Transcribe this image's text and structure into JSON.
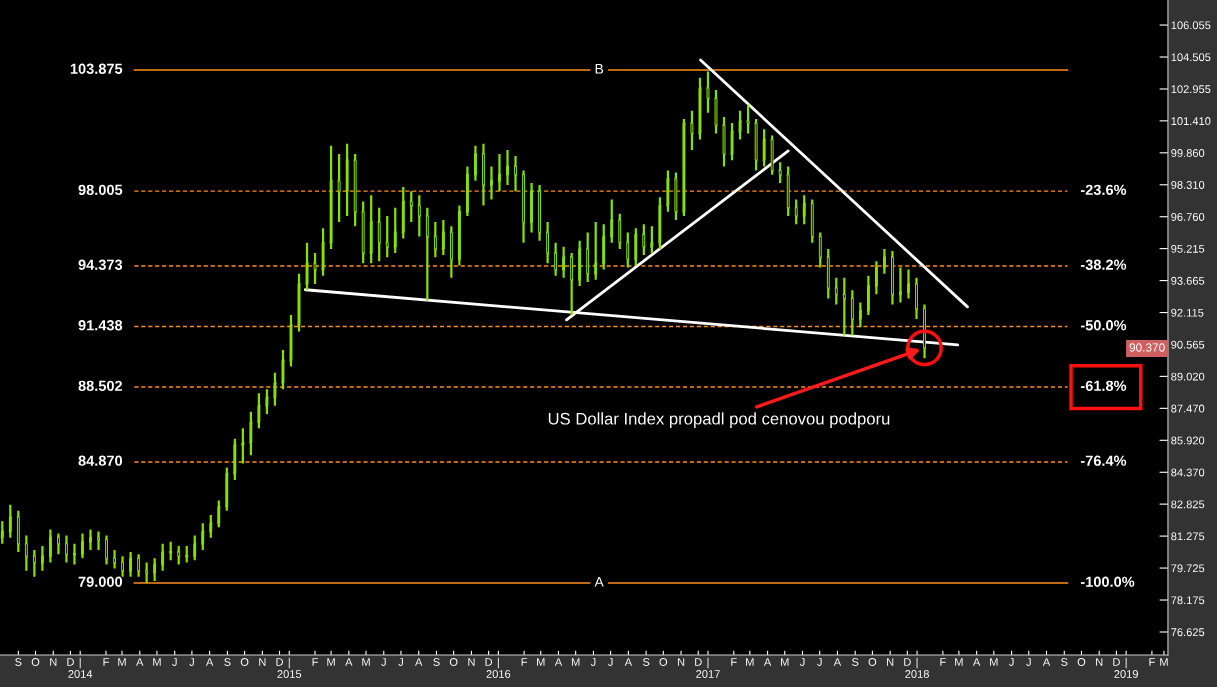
{
  "chart_data": {
    "type": "candlestick",
    "color": "#88e000",
    "x": [
      "2013-08-18",
      "2013-09-01",
      "2013-09-15",
      "2013-09-29",
      "2013-10-13",
      "2013-10-27",
      "2013-11-10",
      "2013-11-24",
      "2013-12-08",
      "2013-12-22",
      "2014-01-05",
      "2014-01-19",
      "2014-02-02",
      "2014-02-16",
      "2014-03-02",
      "2014-03-16",
      "2014-03-30",
      "2014-04-13",
      "2014-04-27",
      "2014-05-11",
      "2014-05-25",
      "2014-06-08",
      "2014-06-22",
      "2014-07-06",
      "2014-07-20",
      "2014-08-03",
      "2014-08-17",
      "2014-08-31",
      "2014-09-14",
      "2014-09-28",
      "2014-10-12",
      "2014-10-26",
      "2014-11-09",
      "2014-11-23",
      "2014-12-07",
      "2014-12-21",
      "2015-01-04",
      "2015-01-18",
      "2015-02-01",
      "2015-02-15",
      "2015-03-01",
      "2015-03-15",
      "2015-03-29",
      "2015-04-12",
      "2015-04-26",
      "2015-05-10",
      "2015-05-24",
      "2015-06-07",
      "2015-06-21",
      "2015-07-05",
      "2015-07-19",
      "2015-08-02",
      "2015-08-16",
      "2015-08-30",
      "2015-09-13",
      "2015-09-27",
      "2015-10-11",
      "2015-10-25",
      "2015-11-08",
      "2015-11-22",
      "2015-12-06",
      "2015-12-20",
      "2016-01-03",
      "2016-01-17",
      "2016-01-31",
      "2016-02-14",
      "2016-02-28",
      "2016-03-13",
      "2016-03-27",
      "2016-04-10",
      "2016-04-24",
      "2016-05-08",
      "2016-05-22",
      "2016-06-05",
      "2016-06-19",
      "2016-07-03",
      "2016-07-17",
      "2016-07-31",
      "2016-08-14",
      "2016-08-28",
      "2016-09-11",
      "2016-09-25",
      "2016-10-09",
      "2016-10-23",
      "2016-11-06",
      "2016-11-20",
      "2016-12-04",
      "2016-12-18",
      "2017-01-01",
      "2017-01-15",
      "2017-01-29",
      "2017-02-12",
      "2017-02-26",
      "2017-03-12",
      "2017-03-26",
      "2017-04-09",
      "2017-04-23",
      "2017-05-07",
      "2017-05-21",
      "2017-06-04",
      "2017-06-18",
      "2017-07-02",
      "2017-07-16",
      "2017-07-30",
      "2017-08-13",
      "2017-08-27",
      "2017-09-10",
      "2017-09-24",
      "2017-10-08",
      "2017-10-22",
      "2017-11-05",
      "2017-11-19",
      "2017-12-03",
      "2017-12-17",
      "2017-12-31",
      "2018-01-14"
    ],
    "ohlc": [
      [
        81.2,
        82.0,
        80.9,
        81.5
      ],
      [
        81.5,
        82.8,
        81.2,
        82.2
      ],
      [
        82.2,
        82.5,
        80.5,
        80.9
      ],
      [
        80.9,
        81.3,
        79.6,
        80.3
      ],
      [
        80.3,
        80.6,
        79.3,
        80.0
      ],
      [
        80.0,
        80.8,
        79.6,
        80.3
      ],
      [
        80.3,
        81.6,
        80.0,
        81.2
      ],
      [
        81.2,
        81.4,
        80.4,
        80.9
      ],
      [
        80.9,
        81.3,
        80.0,
        80.4
      ],
      [
        80.4,
        80.9,
        79.9,
        80.4
      ],
      [
        80.4,
        81.4,
        80.2,
        81.0
      ],
      [
        81.0,
        81.6,
        80.6,
        81.2
      ],
      [
        81.2,
        81.5,
        80.6,
        81.1
      ],
      [
        81.1,
        81.3,
        79.9,
        80.2
      ],
      [
        80.2,
        80.6,
        79.7,
        80.0
      ],
      [
        80.0,
        80.3,
        79.3,
        79.6
      ],
      [
        79.6,
        80.5,
        79.3,
        80.2
      ],
      [
        80.2,
        80.4,
        79.3,
        79.6
      ],
      [
        79.6,
        80.0,
        79.0,
        79.5
      ],
      [
        79.5,
        80.2,
        79.1,
        79.9
      ],
      [
        79.9,
        80.9,
        79.6,
        80.5
      ],
      [
        80.5,
        81.0,
        80.1,
        80.5
      ],
      [
        80.5,
        80.8,
        79.9,
        80.3
      ],
      [
        80.3,
        80.8,
        80.0,
        80.3
      ],
      [
        80.3,
        81.3,
        80.1,
        80.9
      ],
      [
        80.9,
        81.9,
        80.6,
        81.5
      ],
      [
        81.5,
        82.3,
        81.2,
        81.9
      ],
      [
        81.9,
        83.0,
        81.7,
        82.7
      ],
      [
        82.7,
        84.6,
        82.5,
        84.3
      ],
      [
        84.3,
        86.0,
        84.0,
        85.7
      ],
      [
        85.7,
        86.5,
        84.8,
        85.8
      ],
      [
        85.8,
        87.3,
        85.2,
        86.8
      ],
      [
        86.8,
        88.2,
        86.5,
        87.6
      ],
      [
        87.6,
        88.4,
        87.2,
        88.0
      ],
      [
        88.0,
        89.2,
        87.6,
        88.7
      ],
      [
        88.7,
        90.3,
        88.4,
        89.8
      ],
      [
        89.8,
        92.0,
        89.5,
        91.5
      ],
      [
        91.5,
        94.0,
        91.2,
        93.5
      ],
      [
        93.5,
        95.5,
        93.2,
        94.5
      ],
      [
        94.5,
        95.0,
        93.5,
        94.2
      ],
      [
        94.2,
        96.2,
        93.9,
        95.5
      ],
      [
        95.5,
        100.2,
        95.2,
        98.5
      ],
      [
        98.5,
        99.8,
        96.5,
        98.0
      ],
      [
        98.0,
        100.3,
        96.8,
        99.5
      ],
      [
        99.5,
        99.8,
        96.3,
        97.0
      ],
      [
        97.0,
        97.5,
        94.5,
        95.0
      ],
      [
        95.0,
        97.8,
        94.5,
        96.5
      ],
      [
        96.5,
        97.2,
        94.6,
        95.5
      ],
      [
        95.5,
        96.8,
        94.8,
        95.3
      ],
      [
        95.3,
        97.2,
        95.0,
        96.0
      ],
      [
        96.0,
        98.2,
        95.7,
        97.5
      ],
      [
        97.5,
        98.0,
        96.5,
        97.3
      ],
      [
        97.3,
        97.8,
        95.8,
        96.8
      ],
      [
        96.8,
        97.2,
        92.7,
        95.8
      ],
      [
        95.8,
        96.5,
        94.8,
        95.2
      ],
      [
        95.2,
        96.6,
        94.9,
        96.0
      ],
      [
        96.0,
        96.3,
        93.8,
        94.7
      ],
      [
        94.7,
        97.3,
        94.4,
        97.0
      ],
      [
        97.0,
        99.2,
        96.8,
        98.8
      ],
      [
        98.8,
        100.2,
        98.5,
        99.8
      ],
      [
        99.8,
        100.3,
        97.3,
        98.3
      ],
      [
        98.3,
        99.2,
        97.6,
        98.5
      ],
      [
        98.5,
        99.8,
        98.0,
        98.8
      ],
      [
        98.8,
        100.0,
        98.3,
        99.2
      ],
      [
        99.2,
        99.7,
        98.0,
        98.8
      ],
      [
        98.8,
        99.0,
        95.5,
        96.5
      ],
      [
        96.5,
        98.4,
        96.0,
        98.0
      ],
      [
        98.0,
        98.3,
        95.6,
        96.0
      ],
      [
        96.0,
        96.5,
        94.5,
        95.0
      ],
      [
        95.0,
        95.5,
        93.9,
        94.2
      ],
      [
        94.2,
        95.3,
        93.8,
        94.8
      ],
      [
        94.8,
        95.0,
        92.0,
        93.7
      ],
      [
        93.7,
        95.6,
        93.4,
        95.2
      ],
      [
        95.2,
        96.0,
        93.6,
        94.0
      ],
      [
        94.0,
        96.5,
        93.7,
        94.5
      ],
      [
        94.5,
        96.4,
        94.2,
        95.8
      ],
      [
        95.8,
        97.6,
        95.5,
        96.6
      ],
      [
        96.6,
        96.9,
        95.2,
        95.5
      ],
      [
        95.5,
        96.0,
        94.3,
        94.7
      ],
      [
        94.7,
        96.2,
        94.4,
        95.9
      ],
      [
        95.9,
        96.4,
        94.9,
        95.3
      ],
      [
        95.3,
        96.3,
        95.0,
        95.5
      ],
      [
        95.5,
        97.7,
        95.2,
        97.3
      ],
      [
        97.3,
        99.0,
        97.0,
        98.6
      ],
      [
        98.6,
        98.9,
        96.6,
        97.0
      ],
      [
        97.0,
        101.5,
        96.8,
        101.3
      ],
      [
        101.3,
        101.9,
        100.0,
        100.8
      ],
      [
        100.8,
        103.5,
        100.5,
        103.0
      ],
      [
        103.0,
        103.8,
        101.8,
        102.5
      ],
      [
        102.5,
        102.9,
        100.8,
        101.2
      ],
      [
        101.2,
        101.6,
        99.2,
        99.8
      ],
      [
        99.8,
        101.3,
        99.5,
        100.9
      ],
      [
        100.9,
        101.9,
        100.5,
        101.4
      ],
      [
        101.4,
        102.2,
        100.8,
        101.3
      ],
      [
        101.3,
        101.5,
        99.0,
        99.5
      ],
      [
        99.5,
        101.0,
        99.2,
        100.5
      ],
      [
        100.5,
        100.7,
        98.8,
        99.0
      ],
      [
        99.0,
        99.4,
        98.4,
        98.8
      ],
      [
        98.8,
        99.2,
        96.8,
        97.2
      ],
      [
        97.2,
        97.6,
        96.4,
        96.8
      ],
      [
        96.8,
        97.8,
        96.4,
        97.4
      ],
      [
        97.4,
        97.6,
        95.5,
        95.8
      ],
      [
        95.8,
        96.0,
        94.3,
        94.8
      ],
      [
        94.8,
        95.2,
        92.8,
        93.3
      ],
      [
        93.3,
        93.8,
        92.5,
        93.0
      ],
      [
        93.0,
        93.8,
        91.0,
        92.8
      ],
      [
        92.8,
        93.2,
        91.0,
        91.8
      ],
      [
        91.8,
        92.6,
        91.4,
        92.2
      ],
      [
        92.2,
        93.9,
        92.0,
        93.4
      ],
      [
        93.4,
        94.6,
        93.0,
        94.3
      ],
      [
        94.3,
        95.2,
        94.0,
        94.8
      ],
      [
        94.8,
        95.1,
        92.5,
        93.0
      ],
      [
        93.0,
        94.3,
        92.6,
        93.1
      ],
      [
        93.1,
        94.2,
        92.8,
        93.5
      ],
      [
        93.5,
        93.8,
        91.8,
        92.3
      ],
      [
        92.3,
        92.5,
        89.9,
        90.4
      ]
    ],
    "series": [
      {
        "type": "line",
        "color": "#ffffff",
        "x": [
          "2015-01-29",
          "2018-03-13"
        ],
        "values": [
          93.22,
          90.55
        ]
      },
      {
        "type": "line",
        "color": "#ffffff",
        "x": [
          "2016-04-29",
          "2017-05-21"
        ],
        "values": [
          91.76,
          99.95
        ]
      },
      {
        "type": "line",
        "color": "#ffffff",
        "x": [
          "2016-12-19",
          "2018-03-30"
        ],
        "values": [
          104.36,
          92.39
        ]
      }
    ],
    "xlim": [
      "2013-08-14",
      "2019-03-15"
    ],
    "xticks": [
      {
        "value": "2013-09-15",
        "label": "S"
      },
      {
        "value": "2013-10-15",
        "label": "O"
      },
      {
        "value": "2013-11-15",
        "label": "N"
      },
      {
        "value": "2013-12-15",
        "label": "D"
      },
      {
        "value": "2014-01-01",
        "label": "|\n2014"
      },
      {
        "value": "2014-02-15",
        "label": "F"
      },
      {
        "value": "2014-03-15",
        "label": "M"
      },
      {
        "value": "2014-04-15",
        "label": "A"
      },
      {
        "value": "2014-05-15",
        "label": "M"
      },
      {
        "value": "2014-06-15",
        "label": "J"
      },
      {
        "value": "2014-07-15",
        "label": "J"
      },
      {
        "value": "2014-08-15",
        "label": "A"
      },
      {
        "value": "2014-09-15",
        "label": "S"
      },
      {
        "value": "2014-10-15",
        "label": "O"
      },
      {
        "value": "2014-11-15",
        "label": "N"
      },
      {
        "value": "2014-12-15",
        "label": "D"
      },
      {
        "value": "2015-01-01",
        "label": "|\n2015"
      },
      {
        "value": "2015-02-15",
        "label": "F"
      },
      {
        "value": "2015-03-15",
        "label": "M"
      },
      {
        "value": "2015-04-15",
        "label": "A"
      },
      {
        "value": "2015-05-15",
        "label": "M"
      },
      {
        "value": "2015-06-15",
        "label": "J"
      },
      {
        "value": "2015-07-15",
        "label": "J"
      },
      {
        "value": "2015-08-15",
        "label": "A"
      },
      {
        "value": "2015-09-15",
        "label": "S"
      },
      {
        "value": "2015-10-15",
        "label": "O"
      },
      {
        "value": "2015-11-15",
        "label": "N"
      },
      {
        "value": "2015-12-15",
        "label": "D"
      },
      {
        "value": "2016-01-01",
        "label": "|\n2016"
      },
      {
        "value": "2016-02-15",
        "label": "F"
      },
      {
        "value": "2016-03-15",
        "label": "M"
      },
      {
        "value": "2016-04-15",
        "label": "A"
      },
      {
        "value": "2016-05-15",
        "label": "M"
      },
      {
        "value": "2016-06-15",
        "label": "J"
      },
      {
        "value": "2016-07-15",
        "label": "J"
      },
      {
        "value": "2016-08-15",
        "label": "A"
      },
      {
        "value": "2016-09-15",
        "label": "S"
      },
      {
        "value": "2016-10-15",
        "label": "O"
      },
      {
        "value": "2016-11-15",
        "label": "N"
      },
      {
        "value": "2016-12-15",
        "label": "D"
      },
      {
        "value": "2017-01-01",
        "label": "|\n2017"
      },
      {
        "value": "2017-02-15",
        "label": "F"
      },
      {
        "value": "2017-03-15",
        "label": "M"
      },
      {
        "value": "2017-04-15",
        "label": "A"
      },
      {
        "value": "2017-05-15",
        "label": "M"
      },
      {
        "value": "2017-06-15",
        "label": "J"
      },
      {
        "value": "2017-07-15",
        "label": "J"
      },
      {
        "value": "2017-08-15",
        "label": "A"
      },
      {
        "value": "2017-09-15",
        "label": "S"
      },
      {
        "value": "2017-10-15",
        "label": "O"
      },
      {
        "value": "2017-11-15",
        "label": "N"
      },
      {
        "value": "2017-12-15",
        "label": "D"
      },
      {
        "value": "2018-01-01",
        "label": "|\n2018"
      },
      {
        "value": "2018-02-15",
        "label": "F"
      },
      {
        "value": "2018-03-15",
        "label": "M"
      },
      {
        "value": "2018-04-15",
        "label": "A"
      },
      {
        "value": "2018-05-15",
        "label": "M"
      },
      {
        "value": "2018-06-15",
        "label": "J"
      },
      {
        "value": "2018-07-15",
        "label": "J"
      },
      {
        "value": "2018-08-15",
        "label": "A"
      },
      {
        "value": "2018-09-15",
        "label": "S"
      },
      {
        "value": "2018-10-15",
        "label": "O"
      },
      {
        "value": "2018-11-15",
        "label": "N"
      },
      {
        "value": "2018-12-15",
        "label": "D"
      },
      {
        "value": "2019-01-01",
        "label": "|\n2019"
      },
      {
        "value": "2019-02-15",
        "label": "F"
      },
      {
        "value": "2019-03-08",
        "label": "M"
      }
    ],
    "ylim": [
      75.51,
      107.27
    ],
    "yticks": [
      {
        "value": 76.625,
        "label": "76.625"
      },
      {
        "value": 78.175,
        "label": "78.175"
      },
      {
        "value": 79.725,
        "label": "79.725"
      },
      {
        "value": 81.275,
        "label": "81.275"
      },
      {
        "value": 82.825,
        "label": "82.825"
      },
      {
        "value": 84.37,
        "label": "84.370"
      },
      {
        "value": 85.92,
        "label": "85.920"
      },
      {
        "value": 87.47,
        "label": "87.470"
      },
      {
        "value": 89.02,
        "label": "89.020"
      },
      {
        "value": 90.565,
        "label": "90.565"
      },
      {
        "value": 92.115,
        "label": "92.115"
      },
      {
        "value": 93.665,
        "label": "93.665"
      },
      {
        "value": 95.215,
        "label": "95.215"
      },
      {
        "value": 96.76,
        "label": "96.760"
      },
      {
        "value": 98.31,
        "label": "98.310"
      },
      {
        "value": 99.86,
        "label": "99.860"
      },
      {
        "value": 101.41,
        "label": "101.410"
      },
      {
        "value": 102.955,
        "label": "102.955"
      },
      {
        "value": 104.505,
        "label": "104.505"
      },
      {
        "value": 106.055,
        "label": "106.055"
      }
    ],
    "ref_lines": [
      {
        "axis": "y",
        "value": 103.875,
        "label": "103.875",
        "color": "#ff8c1a",
        "line_style": "solid"
      },
      {
        "axis": "y",
        "value": 98.005,
        "label": "98.005",
        "color": "#ff8c1a",
        "line_style": "dashed"
      },
      {
        "axis": "y",
        "value": 94.373,
        "label": "94.373",
        "color": "#ff8c1a",
        "line_style": "dashed"
      },
      {
        "axis": "y",
        "value": 91.438,
        "label": "91.438",
        "color": "#ff8c1a",
        "line_style": "dashed"
      },
      {
        "axis": "y",
        "value": 88.502,
        "label": "88.502",
        "color": "#ff8c1a",
        "line_style": "dashed"
      },
      {
        "axis": "y",
        "value": 84.87,
        "label": "84.870",
        "color": "#ff8c1a",
        "line_style": "dashed"
      },
      {
        "axis": "y",
        "value": 79.0,
        "label": "79.000",
        "color": "#ff8c1a",
        "line_style": "solid"
      }
    ],
    "annotations": [
      {
        "text": "B",
        "x": "2016-06-25",
        "y": 103.875
      },
      {
        "text": "A",
        "x": "2016-06-25",
        "y": 79.0
      },
      {
        "text": "US Dollar Index propadl pod cenovou podporu",
        "x": "2018-01-14",
        "y": 90.4
      },
      {
        "text": "90.370",
        "y": 90.37
      },
      "-23.6%",
      "-38.2%",
      "-50.0%",
      "-61.8%",
      "-76.4%",
      "-100.0%"
    ],
    "grid": false,
    "legend": false
  }
}
